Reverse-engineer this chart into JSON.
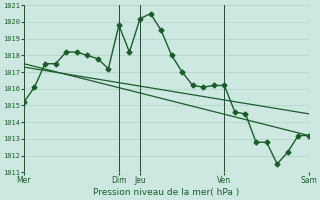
{
  "bg_color": "#cce8e0",
  "grid_color": "#aaccc0",
  "line_color": "#1a5c2a",
  "vline_color": "#2a4a35",
  "title": "Pression niveau de la mer( hPa )",
  "ylim": [
    1011,
    1021
  ],
  "yticks": [
    1011,
    1012,
    1013,
    1014,
    1015,
    1016,
    1017,
    1018,
    1019,
    1020,
    1021
  ],
  "x_day_labels": [
    "Mer",
    "Dim",
    "Jeu",
    "Ven",
    "Sam"
  ],
  "x_day_positions": [
    0,
    9,
    11,
    19,
    27
  ],
  "xlim": [
    0,
    27
  ],
  "series1_x": [
    0,
    1,
    2,
    3,
    4,
    5,
    6,
    7,
    8,
    9,
    10,
    11,
    12,
    13,
    14,
    15,
    16,
    17,
    18,
    19,
    20,
    21,
    22,
    23,
    24,
    25,
    26,
    27
  ],
  "series1_y": [
    1015.2,
    1016.1,
    1017.5,
    1017.5,
    1018.2,
    1018.2,
    1018.0,
    1017.8,
    1017.2,
    1019.8,
    1018.2,
    1020.2,
    1020.5,
    1019.5,
    1018.0,
    1017.0,
    1016.2,
    1016.1,
    1016.2,
    1016.2,
    1014.6,
    1014.5,
    1012.8,
    1012.8,
    1011.5,
    1012.2,
    1013.2,
    1013.2
  ],
  "series2_x": [
    0,
    27
  ],
  "series2_y": [
    1017.5,
    1013.2
  ],
  "series3_x": [
    0,
    27
  ],
  "series3_y": [
    1017.3,
    1014.5
  ],
  "marker_size": 2.5,
  "linewidth": 1.0,
  "trend_linewidth": 0.9
}
